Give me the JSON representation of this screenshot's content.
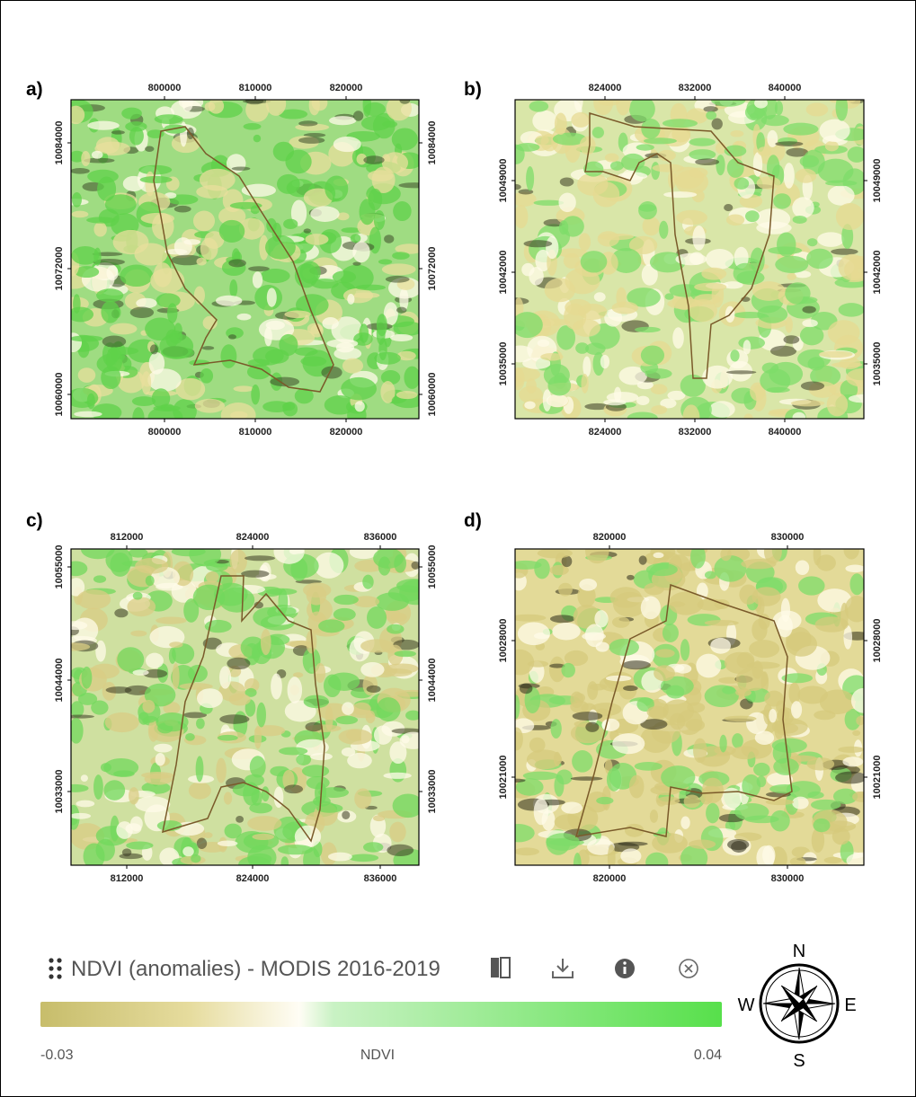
{
  "panels": [
    {
      "label": "a)",
      "x_ticks": [
        "800000",
        "810000",
        "820000"
      ],
      "y_ticks": [
        "10084000",
        "10072000",
        "10060000"
      ]
    },
    {
      "label": "b)",
      "x_ticks": [
        "824000",
        "832000",
        "840000"
      ],
      "y_ticks": [
        "10049000",
        "10042000",
        "10035000"
      ]
    },
    {
      "label": "c)",
      "x_ticks": [
        "812000",
        "824000",
        "836000"
      ],
      "y_ticks": [
        "10055000",
        "10044000",
        "10033000"
      ]
    },
    {
      "label": "d)",
      "x_ticks": [
        "820000",
        "830000"
      ],
      "y_ticks": [
        "10028000",
        "10021000"
      ]
    }
  ],
  "legend": {
    "title": "NDVI (anomalies) - MODIS 2016-2019",
    "min_label": "-0.03",
    "axis_label": "NDVI",
    "max_label": "0.04"
  },
  "compass": {
    "north": "N",
    "east": "E",
    "south": "S",
    "west": "W"
  }
}
